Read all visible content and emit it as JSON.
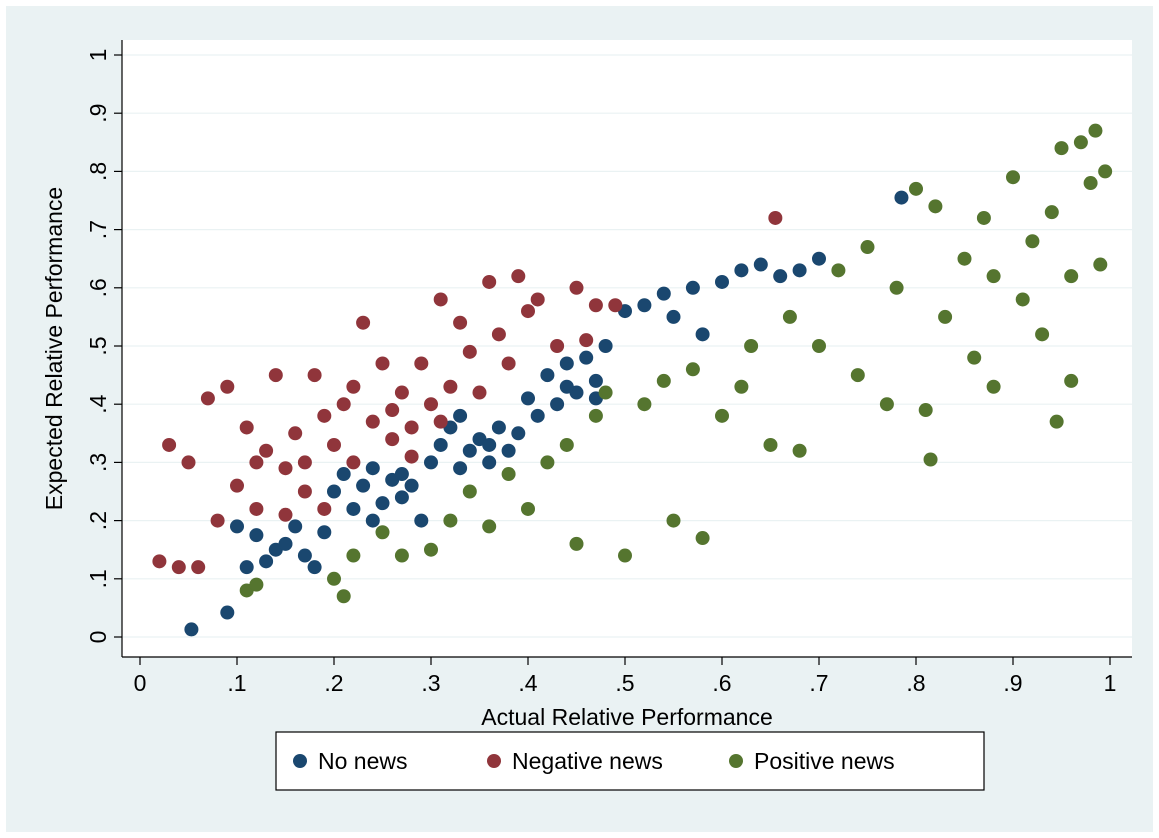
{
  "chart_data": {
    "type": "scatter",
    "xlabel": "Actual Relative Performance",
    "ylabel": "Expected Relative Performance",
    "xlim": [
      0,
      1
    ],
    "ylim": [
      0,
      1
    ],
    "x_ticks": [
      "0",
      ".1",
      ".2",
      ".3",
      ".4",
      ".5",
      ".6",
      ".7",
      ".8",
      ".9",
      "1"
    ],
    "y_ticks": [
      "0",
      ".1",
      ".2",
      ".3",
      ".4",
      ".5",
      ".6",
      ".7",
      ".8",
      ".9",
      "1"
    ],
    "grid": "horizontal",
    "legend_position": "bottom",
    "series": [
      {
        "name": "No news",
        "color": "#1a476f",
        "points": [
          [
            0.053,
            0.013
          ],
          [
            0.09,
            0.042
          ],
          [
            0.1,
            0.19
          ],
          [
            0.11,
            0.12
          ],
          [
            0.12,
            0.175
          ],
          [
            0.13,
            0.13
          ],
          [
            0.14,
            0.15
          ],
          [
            0.15,
            0.16
          ],
          [
            0.16,
            0.19
          ],
          [
            0.17,
            0.14
          ],
          [
            0.18,
            0.12
          ],
          [
            0.19,
            0.18
          ],
          [
            0.2,
            0.25
          ],
          [
            0.21,
            0.28
          ],
          [
            0.22,
            0.22
          ],
          [
            0.23,
            0.26
          ],
          [
            0.24,
            0.29
          ],
          [
            0.25,
            0.23
          ],
          [
            0.26,
            0.27
          ],
          [
            0.27,
            0.24
          ],
          [
            0.28,
            0.26
          ],
          [
            0.29,
            0.2
          ],
          [
            0.3,
            0.3
          ],
          [
            0.31,
            0.33
          ],
          [
            0.32,
            0.36
          ],
          [
            0.33,
            0.38
          ],
          [
            0.34,
            0.32
          ],
          [
            0.35,
            0.34
          ],
          [
            0.36,
            0.3
          ],
          [
            0.37,
            0.36
          ],
          [
            0.38,
            0.32
          ],
          [
            0.39,
            0.35
          ],
          [
            0.4,
            0.41
          ],
          [
            0.41,
            0.38
          ],
          [
            0.42,
            0.45
          ],
          [
            0.43,
            0.4
          ],
          [
            0.44,
            0.47
          ],
          [
            0.45,
            0.42
          ],
          [
            0.46,
            0.48
          ],
          [
            0.47,
            0.41
          ],
          [
            0.48,
            0.5
          ],
          [
            0.5,
            0.56
          ],
          [
            0.52,
            0.57
          ],
          [
            0.54,
            0.59
          ],
          [
            0.55,
            0.55
          ],
          [
            0.57,
            0.6
          ],
          [
            0.58,
            0.52
          ],
          [
            0.6,
            0.61
          ],
          [
            0.62,
            0.63
          ],
          [
            0.64,
            0.64
          ],
          [
            0.66,
            0.62
          ],
          [
            0.68,
            0.63
          ],
          [
            0.7,
            0.65
          ],
          [
            0.785,
            0.755
          ],
          [
            0.24,
            0.2
          ],
          [
            0.27,
            0.28
          ],
          [
            0.33,
            0.29
          ],
          [
            0.36,
            0.33
          ],
          [
            0.44,
            0.43
          ],
          [
            0.47,
            0.44
          ]
        ]
      },
      {
        "name": "Negative news",
        "color": "#90353b",
        "points": [
          [
            0.02,
            0.13
          ],
          [
            0.03,
            0.33
          ],
          [
            0.04,
            0.12
          ],
          [
            0.05,
            0.3
          ],
          [
            0.06,
            0.12
          ],
          [
            0.07,
            0.41
          ],
          [
            0.08,
            0.2
          ],
          [
            0.09,
            0.43
          ],
          [
            0.1,
            0.26
          ],
          [
            0.11,
            0.36
          ],
          [
            0.12,
            0.22
          ],
          [
            0.13,
            0.32
          ],
          [
            0.14,
            0.45
          ],
          [
            0.15,
            0.29
          ],
          [
            0.16,
            0.35
          ],
          [
            0.17,
            0.3
          ],
          [
            0.18,
            0.45
          ],
          [
            0.19,
            0.38
          ],
          [
            0.2,
            0.33
          ],
          [
            0.21,
            0.4
          ],
          [
            0.22,
            0.3
          ],
          [
            0.23,
            0.54
          ],
          [
            0.24,
            0.37
          ],
          [
            0.25,
            0.47
          ],
          [
            0.26,
            0.34
          ],
          [
            0.27,
            0.42
          ],
          [
            0.28,
            0.36
          ],
          [
            0.29,
            0.47
          ],
          [
            0.3,
            0.4
          ],
          [
            0.31,
            0.58
          ],
          [
            0.32,
            0.43
          ],
          [
            0.33,
            0.54
          ],
          [
            0.34,
            0.49
          ],
          [
            0.35,
            0.42
          ],
          [
            0.36,
            0.61
          ],
          [
            0.37,
            0.52
          ],
          [
            0.38,
            0.47
          ],
          [
            0.39,
            0.62
          ],
          [
            0.4,
            0.56
          ],
          [
            0.41,
            0.58
          ],
          [
            0.43,
            0.5
          ],
          [
            0.45,
            0.6
          ],
          [
            0.46,
            0.51
          ],
          [
            0.47,
            0.57
          ],
          [
            0.49,
            0.57
          ],
          [
            0.655,
            0.72
          ],
          [
            0.12,
            0.3
          ],
          [
            0.15,
            0.21
          ],
          [
            0.17,
            0.25
          ],
          [
            0.19,
            0.22
          ],
          [
            0.22,
            0.43
          ],
          [
            0.26,
            0.39
          ],
          [
            0.28,
            0.31
          ],
          [
            0.31,
            0.37
          ]
        ]
      },
      {
        "name": "Positive news",
        "color": "#55752f",
        "points": [
          [
            0.11,
            0.08
          ],
          [
            0.12,
            0.09
          ],
          [
            0.2,
            0.1
          ],
          [
            0.21,
            0.07
          ],
          [
            0.22,
            0.14
          ],
          [
            0.25,
            0.18
          ],
          [
            0.27,
            0.14
          ],
          [
            0.3,
            0.15
          ],
          [
            0.32,
            0.2
          ],
          [
            0.34,
            0.25
          ],
          [
            0.36,
            0.19
          ],
          [
            0.38,
            0.28
          ],
          [
            0.4,
            0.22
          ],
          [
            0.42,
            0.3
          ],
          [
            0.44,
            0.33
          ],
          [
            0.45,
            0.16
          ],
          [
            0.47,
            0.38
          ],
          [
            0.48,
            0.42
          ],
          [
            0.5,
            0.14
          ],
          [
            0.52,
            0.4
          ],
          [
            0.54,
            0.44
          ],
          [
            0.55,
            0.2
          ],
          [
            0.57,
            0.46
          ],
          [
            0.58,
            0.17
          ],
          [
            0.6,
            0.38
          ],
          [
            0.62,
            0.43
          ],
          [
            0.63,
            0.5
          ],
          [
            0.65,
            0.33
          ],
          [
            0.67,
            0.55
          ],
          [
            0.68,
            0.32
          ],
          [
            0.7,
            0.5
          ],
          [
            0.72,
            0.63
          ],
          [
            0.74,
            0.45
          ],
          [
            0.75,
            0.67
          ],
          [
            0.77,
            0.4
          ],
          [
            0.78,
            0.6
          ],
          [
            0.8,
            0.77
          ],
          [
            0.81,
            0.39
          ],
          [
            0.82,
            0.74
          ],
          [
            0.83,
            0.55
          ],
          [
            0.85,
            0.65
          ],
          [
            0.86,
            0.48
          ],
          [
            0.87,
            0.72
          ],
          [
            0.88,
            0.62
          ],
          [
            0.9,
            0.79
          ],
          [
            0.91,
            0.58
          ],
          [
            0.92,
            0.68
          ],
          [
            0.93,
            0.52
          ],
          [
            0.94,
            0.73
          ],
          [
            0.945,
            0.37
          ],
          [
            0.95,
            0.84
          ],
          [
            0.96,
            0.62
          ],
          [
            0.97,
            0.85
          ],
          [
            0.98,
            0.78
          ],
          [
            0.985,
            0.87
          ],
          [
            0.99,
            0.64
          ],
          [
            0.995,
            0.8
          ],
          [
            0.815,
            0.305
          ],
          [
            0.96,
            0.44
          ],
          [
            0.88,
            0.43
          ]
        ]
      }
    ]
  }
}
